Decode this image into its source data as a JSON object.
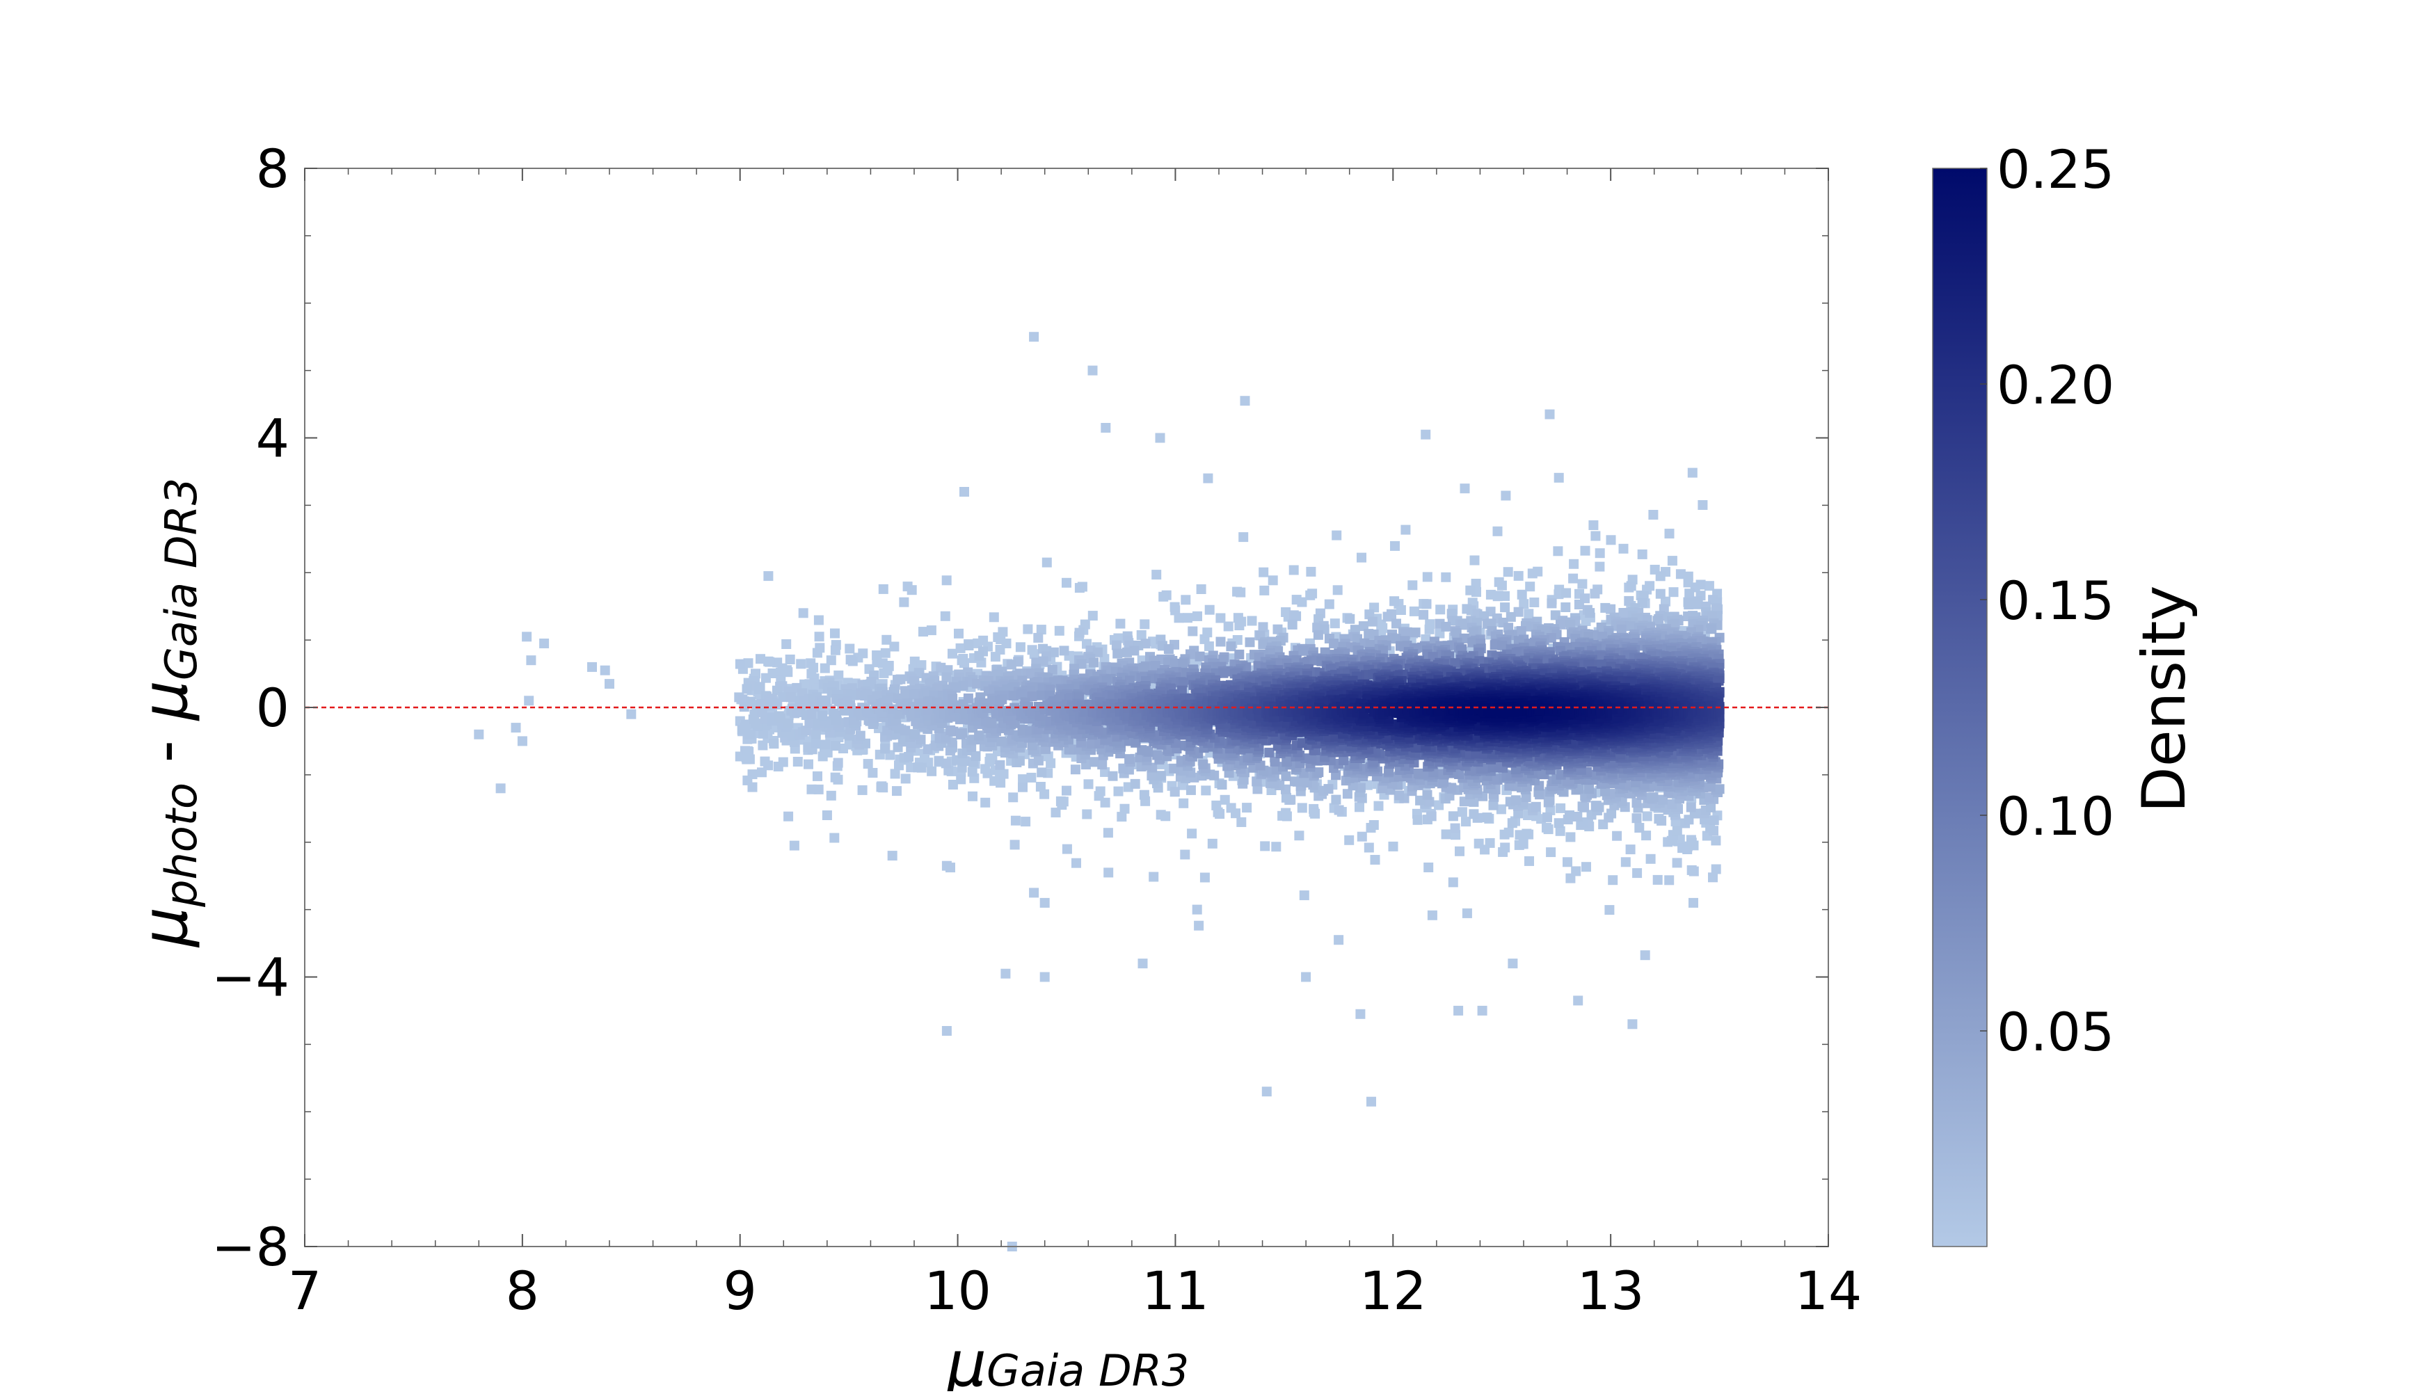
{
  "chart_data": {
    "type": "scatter",
    "title": "",
    "xlabel": {
      "base": "μ",
      "sub": "Gaia DR3"
    },
    "ylabel": {
      "part1": "μ",
      "sub1": "photo",
      "sep": " - ",
      "part2": "μ",
      "sub2": "Gaia DR3"
    },
    "xlim": [
      7,
      14
    ],
    "ylim": [
      -8,
      8
    ],
    "x_ticks": [
      7,
      8,
      9,
      10,
      11,
      12,
      13,
      14
    ],
    "x_tick_labels": [
      "7",
      "8",
      "9",
      "10",
      "11",
      "12",
      "13",
      "14"
    ],
    "y_ticks": [
      -8,
      -4,
      0,
      4,
      8
    ],
    "y_tick_labels": [
      "−8",
      "−4",
      "0",
      "4",
      "8"
    ],
    "reference_line": {
      "y": 0,
      "color": "#e31a1c",
      "style": "dashed"
    },
    "grid": false,
    "colorbar": {
      "label": "Density",
      "min": 0.0,
      "max": 0.25,
      "ticks": [
        0.05,
        0.1,
        0.15,
        0.2,
        0.25
      ],
      "tick_labels": [
        "0.05",
        "0.10",
        "0.15",
        "0.20",
        "0.25"
      ],
      "low_color": "#b3c9e6",
      "high_color": "#000a6b"
    },
    "density_core": {
      "x_peak": 12.5,
      "y_center": -0.05,
      "x_start": 9.0,
      "x_end": 13.5,
      "peak_density": 0.25
    },
    "outliers": [
      [
        7.8,
        -0.4
      ],
      [
        7.9,
        -1.2
      ],
      [
        7.97,
        -0.3
      ],
      [
        8.02,
        1.05
      ],
      [
        8.04,
        0.7
      ],
      [
        8.1,
        0.95
      ],
      [
        8.03,
        0.1
      ],
      [
        8.0,
        -0.5
      ],
      [
        8.32,
        0.6
      ],
      [
        8.38,
        0.55
      ],
      [
        8.4,
        0.35
      ],
      [
        8.5,
        -0.1
      ],
      [
        10.35,
        5.5
      ],
      [
        10.62,
        5.0
      ],
      [
        10.68,
        4.15
      ],
      [
        10.93,
        4.0
      ],
      [
        11.32,
        4.55
      ],
      [
        12.15,
        4.05
      ],
      [
        12.72,
        4.35
      ],
      [
        11.15,
        3.4
      ],
      [
        12.33,
        3.25
      ],
      [
        10.03,
        3.2
      ],
      [
        9.13,
        1.95
      ],
      [
        9.95,
        -2.35
      ],
      [
        9.25,
        -2.05
      ],
      [
        9.95,
        -4.8
      ],
      [
        10.22,
        -3.95
      ],
      [
        10.4,
        -4.0
      ],
      [
        10.85,
        -3.8
      ],
      [
        11.1,
        -3.0
      ],
      [
        11.6,
        -4.0
      ],
      [
        11.75,
        -3.45
      ],
      [
        11.85,
        -4.55
      ],
      [
        11.9,
        -5.85
      ],
      [
        11.42,
        -5.7
      ],
      [
        12.3,
        -4.5
      ],
      [
        12.41,
        -4.5
      ],
      [
        12.55,
        -3.8
      ],
      [
        12.85,
        -4.35
      ],
      [
        13.1,
        -4.7
      ],
      [
        13.38,
        -2.9
      ],
      [
        10.25,
        -8.0
      ],
      [
        9.4,
        -1.6
      ],
      [
        9.7,
        -2.2
      ],
      [
        10.35,
        -2.75
      ],
      [
        10.4,
        -2.9
      ]
    ]
  }
}
